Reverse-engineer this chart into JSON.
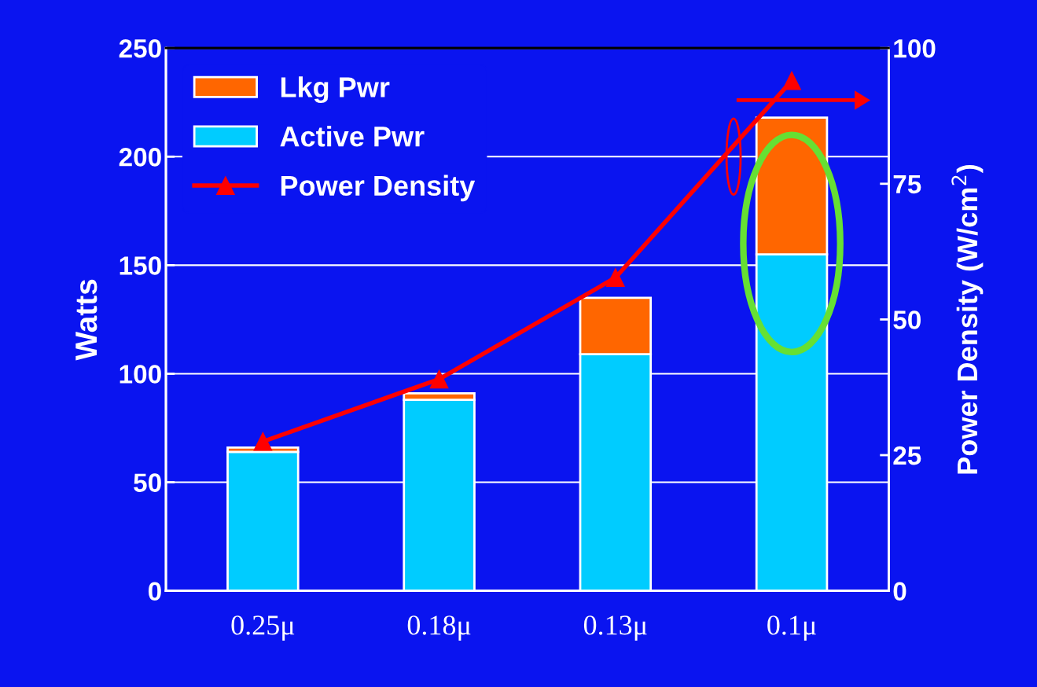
{
  "chart_data": {
    "type": "bar",
    "stacked": true,
    "categories": [
      "0.25μ",
      "0.18μ",
      "0.13μ",
      "0.1μ"
    ],
    "ylabel": "Watts",
    "y2label": "Power Density (W/cm$^{2}$)",
    "ylim": [
      0,
      250
    ],
    "yticks": [
      0,
      50,
      100,
      150,
      200,
      250
    ],
    "y2lim": [
      0,
      100
    ],
    "y2ticks": [
      0,
      25,
      50,
      75,
      100
    ],
    "series": [
      {
        "name": "Active Pwr",
        "color": "#00ccff",
        "values": [
          64,
          88,
          109,
          155
        ]
      },
      {
        "name": "Lkg Pwr",
        "color": "#ff6600",
        "values": [
          2,
          3,
          26,
          63
        ]
      },
      {
        "name": "Power Density",
        "type": "line",
        "axis": "y2",
        "color": "#ff0000",
        "marker": "triangle",
        "values": [
          27.5,
          39,
          57.7,
          94
        ]
      }
    ],
    "grid": "y",
    "legend": "top left"
  }
}
